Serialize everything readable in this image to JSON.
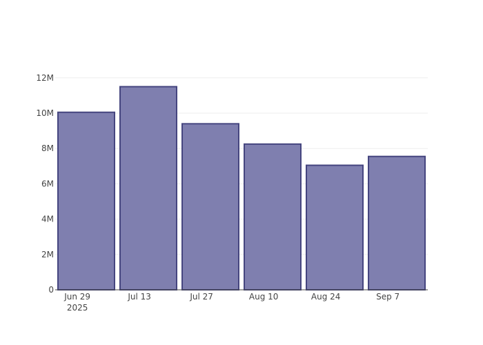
{
  "chart_data": {
    "type": "bar",
    "categories": [
      "Jun 29\n2025",
      "Jul 13",
      "Jul 27",
      "Aug 10",
      "Aug 24",
      "Sep 7"
    ],
    "x_tick_labels": [
      {
        "date": "2025-06-29",
        "lines": [
          "Jun 29",
          "2025"
        ]
      },
      {
        "date": "2025-07-13",
        "lines": [
          "Jul 13"
        ]
      },
      {
        "date": "2025-07-27",
        "lines": [
          "Jul 27"
        ]
      },
      {
        "date": "2025-08-10",
        "lines": [
          "Aug 10"
        ]
      },
      {
        "date": "2025-08-24",
        "lines": [
          "Aug 24"
        ]
      },
      {
        "date": "2025-09-07",
        "lines": [
          "Sep 7"
        ]
      }
    ],
    "bars": [
      {
        "start": "2025-06-24",
        "end": "2025-07-08",
        "value": 10050000
      },
      {
        "start": "2025-07-08",
        "end": "2025-07-22",
        "value": 11500000
      },
      {
        "start": "2025-07-22",
        "end": "2025-08-05",
        "value": 9400000
      },
      {
        "start": "2025-08-05",
        "end": "2025-08-19",
        "value": 8250000
      },
      {
        "start": "2025-08-19",
        "end": "2025-09-02",
        "value": 7050000
      },
      {
        "start": "2025-09-02",
        "end": "2025-09-16",
        "value": 7550000
      }
    ],
    "xlim": [
      "2025-06-24",
      "2025-09-16"
    ],
    "ylim": [
      0,
      12500000
    ],
    "y_ticks": [
      0,
      2000000,
      4000000,
      6000000,
      8000000,
      10000000,
      12000000
    ],
    "y_tick_labels": [
      "0",
      "2M",
      "4M",
      "6M",
      "8M",
      "10M",
      "12M"
    ],
    "title": "",
    "xlabel": "",
    "ylabel": "",
    "grid": true,
    "colors": {
      "bar_fill": "#7f7faf",
      "bar_stroke": "#45457f",
      "grid": "#eeeeee",
      "axis": "#444444",
      "text": "#444444"
    }
  }
}
